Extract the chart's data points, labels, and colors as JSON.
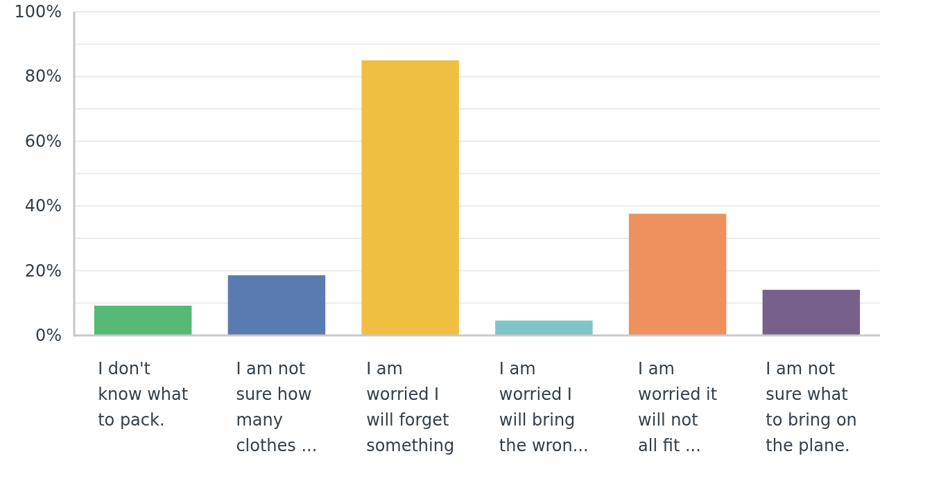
{
  "chart_data": {
    "type": "bar",
    "categories": [
      "I don't\nknow what\nto pack.",
      "I am not\nsure how\nmany\nclothes ...",
      "I am\nworried I\nwill forget\nsomething",
      "I am\nworried I\nwill bring\nthe wron...",
      "I am\nworried it\nwill not\nall fit ...",
      "I am not\nsure what\nto bring on\nthe plane."
    ],
    "values": [
      9.2,
      18.6,
      85.0,
      4.6,
      37.6,
      14.1
    ],
    "colors": [
      "#56ba76",
      "#5a7bb0",
      "#f0bf41",
      "#80c5c8",
      "#ef915e",
      "#77608a"
    ],
    "ylim": [
      0,
      100
    ],
    "yticks": [
      {
        "value": 0,
        "label": "0%"
      },
      {
        "value": 10,
        "label": null
      },
      {
        "value": 20,
        "label": "20%"
      },
      {
        "value": 30,
        "label": null
      },
      {
        "value": 40,
        "label": "40%"
      },
      {
        "value": 50,
        "label": null
      },
      {
        "value": 60,
        "label": "60%"
      },
      {
        "value": 70,
        "label": null
      },
      {
        "value": 80,
        "label": "80%"
      },
      {
        "value": 90,
        "label": null
      },
      {
        "value": 100,
        "label": "100%"
      }
    ],
    "grid": "y"
  }
}
